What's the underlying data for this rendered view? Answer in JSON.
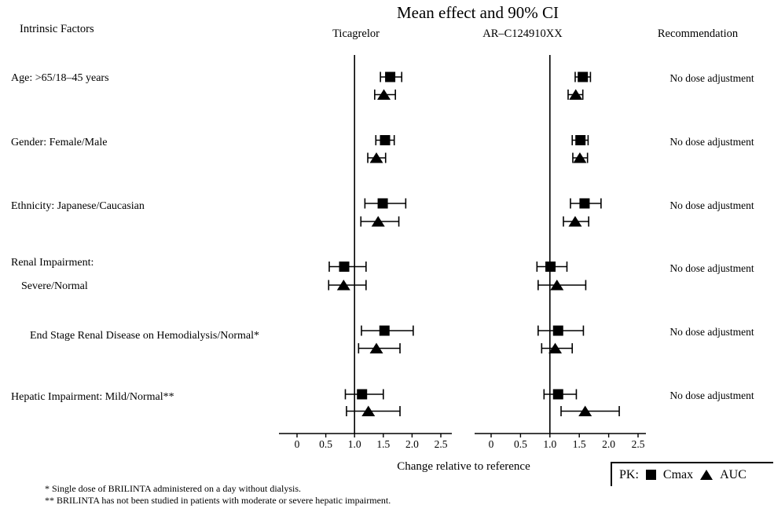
{
  "title": "Mean effect and 90% CI",
  "columns": {
    "intrinsic_factors": "Intrinsic Factors",
    "panel1": "Ticagrelor",
    "panel2": "AR–C124910XX",
    "recommendation": "Recommendation"
  },
  "factor_labels": [
    "Age: >65/18–45 years",
    "Gender: Female/Male",
    "Ethnicity: Japanese/Caucasian",
    "Renal Impairment:",
    "Severe/Normal",
    "End Stage Renal Disease on Hemodialysis/Normal*",
    "Hepatic Impairment: Mild/Normal**"
  ],
  "recommendations": [
    "No dose adjustment",
    "No dose adjustment",
    "No dose adjustment",
    "No dose adjustment",
    "No dose adjustment",
    "No dose adjustment"
  ],
  "xaxis_label": "Change relative to reference",
  "legend": {
    "prefix": "PK:",
    "cmax_label": "Cmax",
    "auc_label": "AUC",
    "cmax_marker": "filled-square",
    "auc_marker": "filled-triangle"
  },
  "footnotes": [
    "* Single dose of BRILINTA administered on a day without dialysis.",
    "** BRILINTA has not been studied in patients with moderate or severe hepatic impairment."
  ],
  "colors": {
    "marker": "#000000",
    "text": "#000000",
    "background": "#ffffff"
  },
  "chart_data": {
    "type": "forest",
    "title": "Mean effect and 90% CI",
    "xlabel": "Change relative to reference",
    "xlim": [
      0,
      2.5
    ],
    "x_ticks": [
      0,
      0.5,
      1.0,
      1.5,
      2.0,
      2.5
    ],
    "reference_line": 1.0,
    "panels": [
      "Ticagrelor",
      "AR–C124910XX"
    ],
    "series_markers": {
      "cmax": "square",
      "auc": "triangle"
    },
    "rows": [
      {
        "factor": "Age: >65/18–45 years",
        "ticagrelor": {
          "cmax": {
            "est": 1.62,
            "lo": 1.45,
            "hi": 1.82
          },
          "auc": {
            "est": 1.51,
            "lo": 1.35,
            "hi": 1.71
          }
        },
        "arc124910xx": {
          "cmax": {
            "est": 1.56,
            "lo": 1.43,
            "hi": 1.69
          },
          "auc": {
            "est": 1.44,
            "lo": 1.31,
            "hi": 1.56
          }
        },
        "recommendation": "No dose adjustment"
      },
      {
        "factor": "Gender: Female/Male",
        "ticagrelor": {
          "cmax": {
            "est": 1.53,
            "lo": 1.37,
            "hi": 1.69
          },
          "auc": {
            "est": 1.38,
            "lo": 1.23,
            "hi": 1.54
          }
        },
        "arc124910xx": {
          "cmax": {
            "est": 1.52,
            "lo": 1.38,
            "hi": 1.65
          },
          "auc": {
            "est": 1.51,
            "lo": 1.39,
            "hi": 1.64
          }
        },
        "recommendation": "No dose adjustment"
      },
      {
        "factor": "Ethnicity: Japanese/Caucasian",
        "ticagrelor": {
          "cmax": {
            "est": 1.49,
            "lo": 1.18,
            "hi": 1.89
          },
          "auc": {
            "est": 1.41,
            "lo": 1.11,
            "hi": 1.77
          }
        },
        "arc124910xx": {
          "cmax": {
            "est": 1.59,
            "lo": 1.35,
            "hi": 1.87
          },
          "auc": {
            "est": 1.43,
            "lo": 1.23,
            "hi": 1.66
          }
        },
        "recommendation": "No dose adjustment"
      },
      {
        "factor": "Renal Impairment: Severe/Normal",
        "ticagrelor": {
          "cmax": {
            "est": 0.82,
            "lo": 0.56,
            "hi": 1.2
          },
          "auc": {
            "est": 0.81,
            "lo": 0.55,
            "hi": 1.2
          }
        },
        "arc124910xx": {
          "cmax": {
            "est": 1.01,
            "lo": 0.78,
            "hi": 1.29
          },
          "auc": {
            "est": 1.12,
            "lo": 0.8,
            "hi": 1.61
          }
        },
        "recommendation": "No dose adjustment"
      },
      {
        "factor": "End Stage Renal Disease on Hemodialysis/Normal*",
        "ticagrelor": {
          "cmax": {
            "est": 1.52,
            "lo": 1.12,
            "hi": 2.02
          },
          "auc": {
            "est": 1.38,
            "lo": 1.07,
            "hi": 1.79
          }
        },
        "arc124910xx": {
          "cmax": {
            "est": 1.14,
            "lo": 0.8,
            "hi": 1.57
          },
          "auc": {
            "est": 1.09,
            "lo": 0.86,
            "hi": 1.38
          }
        },
        "recommendation": "No dose adjustment"
      },
      {
        "factor": "Hepatic Impairment: Mild/Normal**",
        "ticagrelor": {
          "cmax": {
            "est": 1.13,
            "lo": 0.84,
            "hi": 1.5
          },
          "auc": {
            "est": 1.24,
            "lo": 0.86,
            "hi": 1.79
          }
        },
        "arc124910xx": {
          "cmax": {
            "est": 1.14,
            "lo": 0.9,
            "hi": 1.45
          },
          "auc": {
            "est": 1.6,
            "lo": 1.19,
            "hi": 2.18
          }
        },
        "recommendation": "No dose adjustment"
      }
    ]
  }
}
